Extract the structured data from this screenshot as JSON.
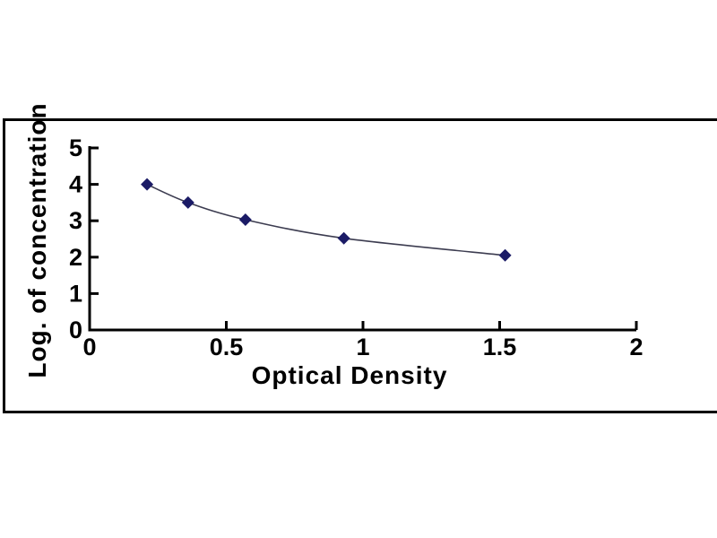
{
  "chart_data": {
    "type": "scatter",
    "title": "",
    "xlabel": "Optical Density",
    "ylabel": "Log. of concentration",
    "points": [
      {
        "x": 0.21,
        "y": 4.0
      },
      {
        "x": 0.36,
        "y": 3.5
      },
      {
        "x": 0.57,
        "y": 3.03
      },
      {
        "x": 0.93,
        "y": 2.52
      },
      {
        "x": 1.52,
        "y": 2.05
      }
    ],
    "x_ticks": [
      0,
      0.5,
      1,
      1.5,
      2
    ],
    "x_tick_labels": [
      "0",
      "0.5",
      "1",
      "1.5",
      "2"
    ],
    "y_ticks": [
      0,
      1,
      2,
      3,
      4,
      5
    ],
    "y_tick_labels": [
      "0",
      "1",
      "2",
      "3",
      "4",
      "5"
    ],
    "xlim": [
      0,
      2
    ],
    "ylim": [
      0,
      5
    ],
    "grid": false,
    "legend": "none",
    "line_smooth": true,
    "marker": "diamond",
    "colors": {
      "marker": "#1b1b66",
      "line": "#3c3c50",
      "axis": "#000000",
      "text": "#000000",
      "frame_border": "#000000",
      "background": "#ffffff"
    }
  }
}
